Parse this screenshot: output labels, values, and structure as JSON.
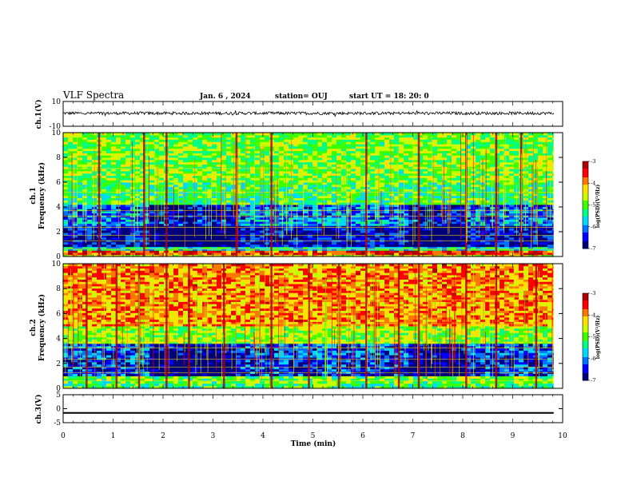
{
  "header": {
    "title": "VLF Spectra",
    "date": "Jan. 6 , 2024",
    "station": "station= OUJ",
    "start_ut": "start  UT =   18: 20: 0"
  },
  "colors": {
    "spectrogram_scale": [
      "#00007a",
      "#0000ff",
      "#0073ff",
      "#00d8ff",
      "#00ff84",
      "#3cff00",
      "#c8ff00",
      "#ffe000",
      "#ff7700",
      "#ff0000",
      "#b00000"
    ],
    "trace": "#000000"
  },
  "colorbar": {
    "label": "log(PSD)(V²/Hz)",
    "ticks": [
      "-3",
      "-4",
      "-5",
      "-6",
      "-7"
    ],
    "range": [
      -7,
      -3
    ]
  },
  "chart_data": [
    {
      "type": "line",
      "panel": "ch1-waveform",
      "ylabel": "ch.1(V)",
      "ylim": [
        -10,
        10
      ],
      "yticks": [
        "10",
        "-10"
      ],
      "xlim": [
        0,
        10
      ],
      "description_values": {
        "baseline_V": 0.5,
        "noise_amplitude_V": 1.2
      }
    },
    {
      "type": "heatmap",
      "panel": "ch1-spectrogram",
      "ylabel_top": "ch.1",
      "ylabel": "Frequency (kHz)",
      "ylim": [
        0,
        10
      ],
      "yticks": [
        "0",
        "2",
        "4",
        "6",
        "8",
        "10"
      ],
      "xlim": [
        0,
        10
      ],
      "data_end_min": 9.82,
      "frequency_bands_kHz": [
        {
          "from": 0.0,
          "to": 0.15,
          "log_psd": -4.5
        },
        {
          "from": 0.15,
          "to": 0.5,
          "log_psd": -3.6
        },
        {
          "from": 0.5,
          "to": 0.8,
          "log_psd": -5.6
        },
        {
          "from": 0.8,
          "to": 2.5,
          "log_psd": -6.6
        },
        {
          "from": 2.5,
          "to": 3.0,
          "log_psd": -5.9
        },
        {
          "from": 3.0,
          "to": 4.2,
          "log_psd": -6.1
        },
        {
          "from": 4.2,
          "to": 6.0,
          "log_psd": -5.2
        },
        {
          "from": 6.0,
          "to": 10.0,
          "log_psd": -4.9
        }
      ],
      "quiet_intervals_min": [
        [
          1.7,
          3.4
        ],
        [
          6.9,
          8.0
        ]
      ],
      "sferic_columns_min": [
        0.7,
        1.6,
        2.05,
        3.45,
        4.15,
        6.05,
        7.1,
        8.05,
        8.65,
        9.15
      ]
    },
    {
      "type": "heatmap",
      "panel": "ch2-spectrogram",
      "ylabel_top": "ch.2",
      "ylabel": "Frequency (kHz)",
      "ylim": [
        0,
        10
      ],
      "yticks": [
        "0",
        "2",
        "4",
        "6",
        "8",
        "10"
      ],
      "xlim": [
        0,
        10
      ],
      "data_end_min": 9.82,
      "frequency_bands_kHz": [
        {
          "from": 0.0,
          "to": 0.4,
          "log_psd": -5.2
        },
        {
          "from": 0.4,
          "to": 1.0,
          "log_psd": -5.0
        },
        {
          "from": 1.0,
          "to": 2.5,
          "log_psd": -6.4
        },
        {
          "from": 2.5,
          "to": 3.6,
          "log_psd": -6.2
        },
        {
          "from": 3.6,
          "to": 5.0,
          "log_psd": -4.8
        },
        {
          "from": 5.0,
          "to": 10.0,
          "log_psd": -4.0
        }
      ],
      "quiet_intervals_min": [
        [
          1.7,
          3.4
        ],
        [
          6.9,
          8.0
        ]
      ],
      "sferic_columns_min": [
        0.45,
        1.05,
        1.5,
        2.05,
        2.5,
        3.2,
        4.15,
        4.9,
        5.5,
        6.05,
        6.7,
        7.1,
        8.05,
        8.65,
        9.45
      ]
    },
    {
      "type": "line",
      "panel": "ch3-waveform",
      "ylabel": "ch.3(V)",
      "ylim": [
        -5,
        5
      ],
      "yticks": [
        "5",
        "0",
        "-5"
      ],
      "xlim": [
        0,
        10
      ],
      "description_values": {
        "baseline_V": -1.5
      }
    }
  ],
  "x_axis": {
    "label": "Time (min)",
    "ticks": [
      "0",
      "1",
      "2",
      "3",
      "4",
      "5",
      "6",
      "7",
      "8",
      "9",
      "10"
    ]
  }
}
